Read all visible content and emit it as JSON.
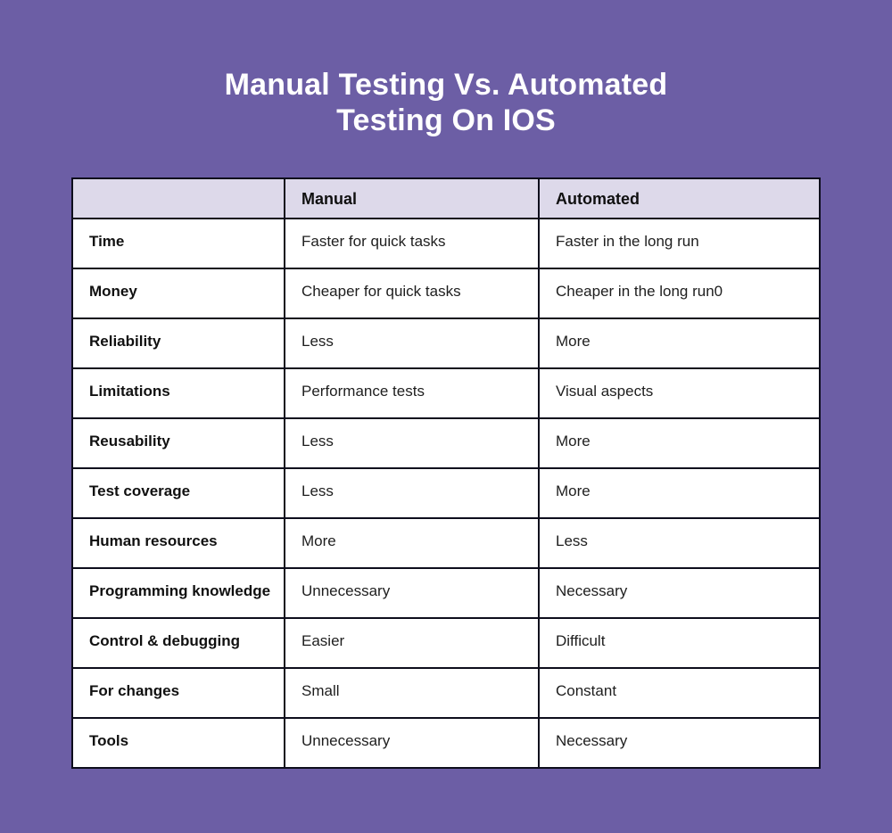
{
  "page": {
    "background_color": "#6C5EA5",
    "title_line1": "Manual Testing Vs. Automated",
    "title_line2": "Testing On IOS"
  },
  "table": {
    "header_bg": "#DDD9EA",
    "border_color": "#0D0D1C",
    "columns": [
      "",
      "Manual",
      "Automated"
    ],
    "rows": [
      {
        "label": "Time",
        "manual": "Faster for quick tasks",
        "automated": "Faster in the long run"
      },
      {
        "label": "Money",
        "manual": "Cheaper for quick tasks",
        "automated": "Cheaper in the long run0"
      },
      {
        "label": "Reliability",
        "manual": "Less",
        "automated": "More"
      },
      {
        "label": "Limitations",
        "manual": "Performance tests",
        "automated": "Visual aspects"
      },
      {
        "label": "Reusability",
        "manual": "Less",
        "automated": "More"
      },
      {
        "label": "Test coverage",
        "manual": "Less",
        "automated": "More"
      },
      {
        "label": "Human resources",
        "manual": "More",
        "automated": "Less"
      },
      {
        "label": "Programming knowledge",
        "manual": "Unnecessary",
        "automated": "Necessary"
      },
      {
        "label": "Control & debugging",
        "manual": "Easier",
        "automated": "Difficult"
      },
      {
        "label": "For changes",
        "manual": "Small",
        "automated": "Constant"
      },
      {
        "label": "Tools",
        "manual": "Unnecessary",
        "automated": "Necessary"
      }
    ]
  }
}
